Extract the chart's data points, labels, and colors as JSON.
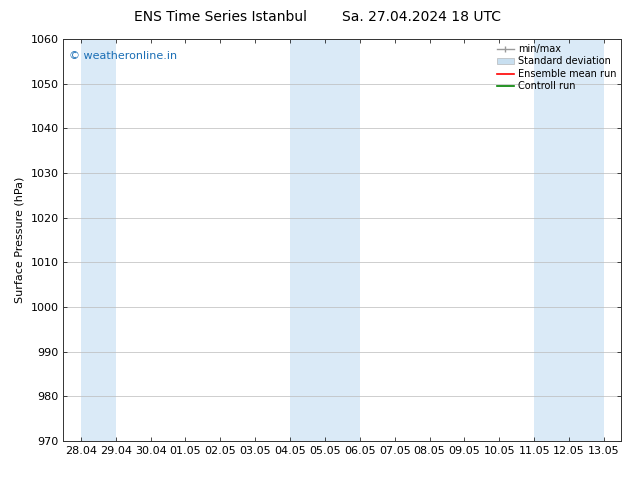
{
  "title_left": "ENS Time Series Istanbul",
  "title_right": "Sa. 27.04.2024 18 UTC",
  "ylabel": "Surface Pressure (hPa)",
  "ylim": [
    970,
    1060
  ],
  "yticks": [
    970,
    980,
    990,
    1000,
    1010,
    1020,
    1030,
    1040,
    1050,
    1060
  ],
  "xtick_labels": [
    "28.04",
    "29.04",
    "30.04",
    "01.05",
    "02.05",
    "03.05",
    "04.05",
    "05.05",
    "06.05",
    "07.05",
    "08.05",
    "09.05",
    "10.05",
    "11.05",
    "12.05",
    "13.05"
  ],
  "shaded_bands": [
    {
      "xmin": 0,
      "xmax": 1,
      "color": "#daeaf7"
    },
    {
      "xmin": 6,
      "xmax": 8,
      "color": "#daeaf7"
    },
    {
      "xmin": 13,
      "xmax": 15,
      "color": "#daeaf7"
    }
  ],
  "watermark": "© weatheronline.in",
  "watermark_color": "#1a6eb5",
  "legend_entries": [
    {
      "label": "min/max"
    },
    {
      "label": "Standard deviation"
    },
    {
      "label": "Ensemble mean run"
    },
    {
      "label": "Controll run"
    }
  ],
  "bg_color": "#ffffff",
  "grid_color": "#bbbbbb",
  "font_size": 8,
  "title_font_size": 10
}
